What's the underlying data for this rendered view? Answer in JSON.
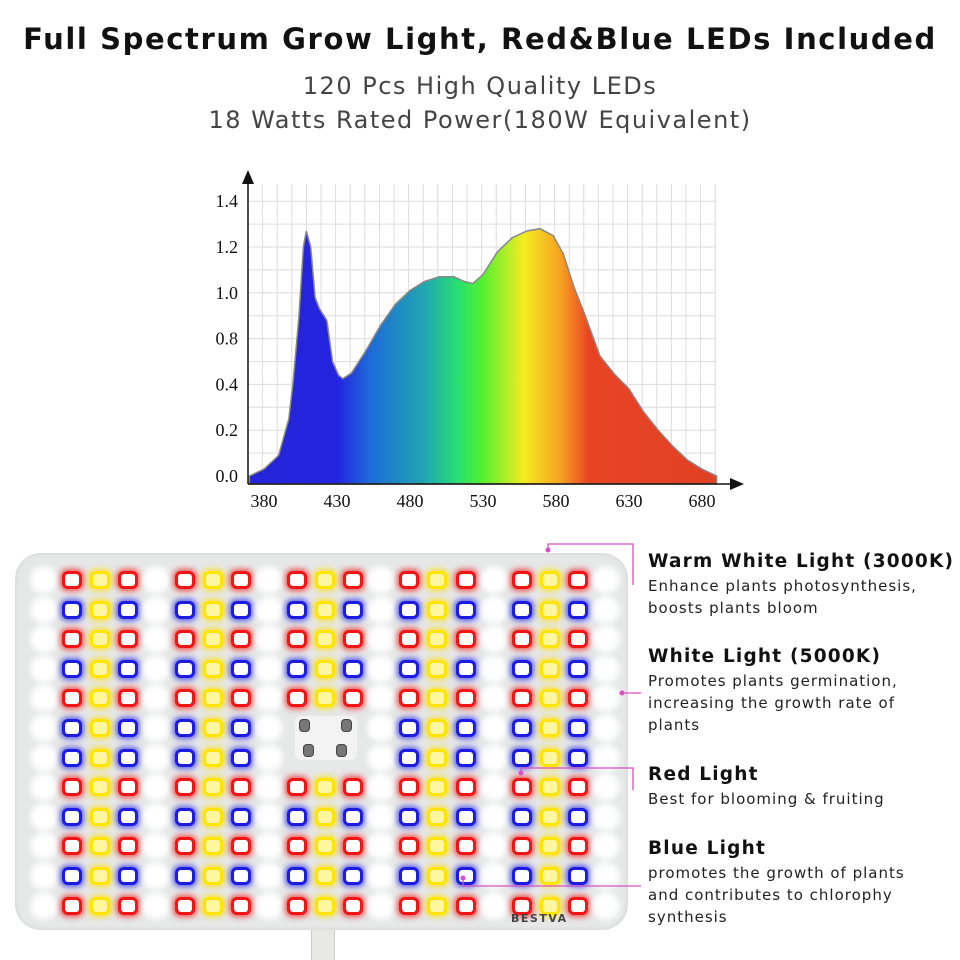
{
  "header": {
    "title": "Full Spectrum Grow Light, Red&Blue LEDs Included",
    "subtitle_1": "120 Pcs High Quality LEDs",
    "subtitle_2": "18 Watts Rated Power(180W Equivalent)"
  },
  "chart_data": {
    "type": "area",
    "title": "",
    "xlabel": "",
    "ylabel": "",
    "x_ticks": [
      "380",
      "430",
      "480",
      "530",
      "580",
      "630",
      "680"
    ],
    "y_ticks": [
      "0.0",
      "0.2",
      "0.4",
      "0.8",
      "1.0",
      "1.2",
      "1.4"
    ],
    "xlim": [
      369,
      700
    ],
    "grid": true,
    "fill": "visible-spectrum gradient",
    "points": [
      [
        370,
        0.0
      ],
      [
        380,
        0.03
      ],
      [
        390,
        0.09
      ],
      [
        397,
        0.25
      ],
      [
        400,
        0.43
      ],
      [
        404,
        0.9
      ],
      [
        407,
        1.2
      ],
      [
        409,
        1.27
      ],
      [
        412,
        1.2
      ],
      [
        415,
        0.98
      ],
      [
        418,
        0.93
      ],
      [
        423,
        0.88
      ],
      [
        427,
        0.6
      ],
      [
        431,
        0.48
      ],
      [
        434,
        0.45
      ],
      [
        440,
        0.5
      ],
      [
        450,
        0.7
      ],
      [
        460,
        0.86
      ],
      [
        470,
        0.95
      ],
      [
        480,
        1.01
      ],
      [
        490,
        1.05
      ],
      [
        500,
        1.07
      ],
      [
        510,
        1.07
      ],
      [
        517,
        1.05
      ],
      [
        523,
        1.04
      ],
      [
        530,
        1.08
      ],
      [
        540,
        1.18
      ],
      [
        550,
        1.24
      ],
      [
        560,
        1.27
      ],
      [
        569,
        1.28
      ],
      [
        578,
        1.25
      ],
      [
        585,
        1.17
      ],
      [
        592,
        1.03
      ],
      [
        600,
        0.9
      ],
      [
        610,
        0.65
      ],
      [
        620,
        0.49
      ],
      [
        630,
        0.38
      ],
      [
        640,
        0.28
      ],
      [
        650,
        0.2
      ],
      [
        660,
        0.13
      ],
      [
        670,
        0.07
      ],
      [
        680,
        0.03
      ],
      [
        690,
        0.0
      ]
    ]
  },
  "panel": {
    "brand": "BESTVA",
    "colors": {
      "red": "#f01515",
      "blue": "#1c1ce0",
      "warm_white": "#ffe400",
      "white": "#ffffff"
    }
  },
  "features": [
    {
      "title": "Warm White Light (3000K)",
      "desc": [
        "Enhance plants photosynthesis,",
        "boosts plants bloom"
      ]
    },
    {
      "title": "White Light (5000K)",
      "desc": [
        "Promotes plants germination,",
        "increasing the growth rate of",
        "plants"
      ]
    },
    {
      "title": "Red Light",
      "desc": [
        "Best for blooming & fruiting"
      ]
    },
    {
      "title": "Blue Light",
      "desc": [
        "promotes the growth of plants",
        "and contributes to chlorophy",
        "synthesis"
      ]
    }
  ],
  "leader_color": "#d84fc8"
}
